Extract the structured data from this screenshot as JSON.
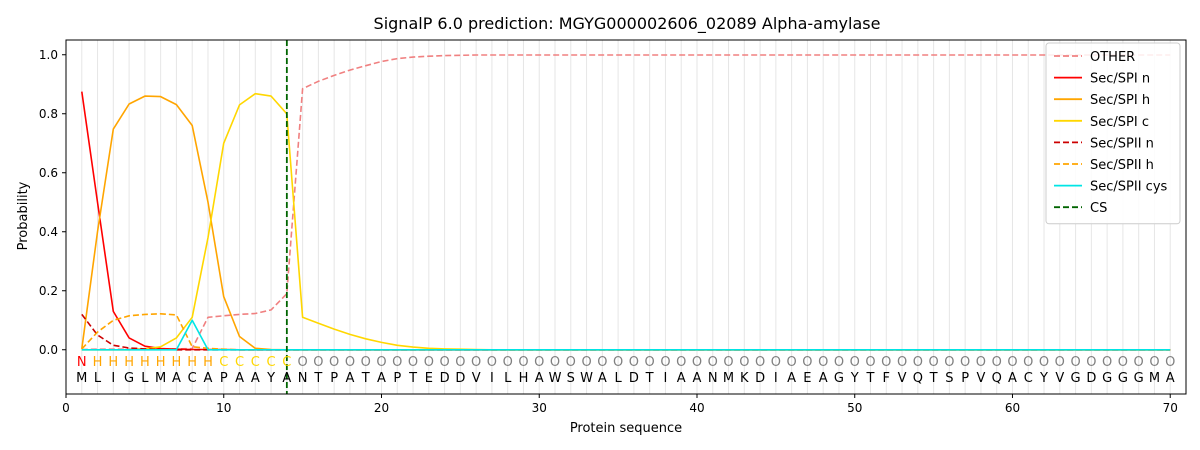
{
  "chart_data": {
    "type": "line",
    "title": "SignalP 6.0 prediction: MGYG000002606_02089 Alpha-amylase",
    "xlabel": "Protein sequence",
    "ylabel": "Probability",
    "xlim": [
      0,
      71
    ],
    "ylim": [
      -0.15,
      1.05
    ],
    "xticks": [
      0,
      10,
      20,
      30,
      40,
      50,
      60,
      70
    ],
    "yticks": [
      0.0,
      0.2,
      0.4,
      0.6,
      0.8,
      1.0
    ],
    "grid": "vertical lines at each residue",
    "legend_position": "top-right",
    "sequence": [
      "M",
      "L",
      "I",
      "G",
      "L",
      "M",
      "A",
      "C",
      "A",
      "P",
      "A",
      "A",
      "Y",
      "A",
      "N",
      "T",
      "P",
      "A",
      "T",
      "A",
      "P",
      "T",
      "E",
      "D",
      "D",
      "V",
      "I",
      "L",
      "H",
      "A",
      "W",
      "S",
      "W",
      "A",
      "L",
      "D",
      "T",
      "I",
      "A",
      "A",
      "N",
      "M",
      "K",
      "D",
      "I",
      "A",
      "E",
      "A",
      "G",
      "Y",
      "T",
      "F",
      "V",
      "Q",
      "T",
      "S",
      "P",
      "V",
      "Q",
      "A",
      "C",
      "Y",
      "V",
      "G",
      "D",
      "G",
      "G",
      "G",
      "M",
      "A"
    ],
    "labels": [
      "N",
      "H",
      "H",
      "H",
      "H",
      "H",
      "H",
      "H",
      "H",
      "C",
      "C",
      "C",
      "C",
      "C",
      "O",
      "O",
      "O",
      "O",
      "O",
      "O",
      "O",
      "O",
      "O",
      "O",
      "O",
      "O",
      "O",
      "O",
      "O",
      "O",
      "O",
      "O",
      "O",
      "O",
      "O",
      "O",
      "O",
      "O",
      "O",
      "O",
      "O",
      "O",
      "O",
      "O",
      "O",
      "O",
      "O",
      "O",
      "O",
      "O",
      "O",
      "O",
      "O",
      "O",
      "O",
      "O",
      "O",
      "O",
      "O",
      "O",
      "O",
      "O",
      "O",
      "O",
      "O",
      "O",
      "O",
      "O",
      "O",
      "O"
    ],
    "label_colors": {
      "N": "#ff0000",
      "H": "#ffa500",
      "C": "#ffd700",
      "O": "#808080"
    },
    "series": [
      {
        "name": "OTHER",
        "color": "#f08080",
        "dash": true,
        "values": [
          0.001,
          0.002,
          0.002,
          0.002,
          0.003,
          0.003,
          0.003,
          0.004,
          0.11,
          0.115,
          0.12,
          0.123,
          0.135,
          0.19,
          0.885,
          0.91,
          0.93,
          0.948,
          0.963,
          0.977,
          0.987,
          0.992,
          0.995,
          0.997,
          0.998,
          0.999,
          0.999,
          0.999,
          0.999,
          0.999,
          0.999,
          0.999,
          0.999,
          0.999,
          0.999,
          0.999,
          0.999,
          0.999,
          0.999,
          0.999,
          0.999,
          0.999,
          0.999,
          0.999,
          0.999,
          0.999,
          0.999,
          0.999,
          0.999,
          0.999,
          0.999,
          0.999,
          0.999,
          0.999,
          0.999,
          0.999,
          0.999,
          0.999,
          0.999,
          0.999,
          0.999,
          0.999,
          0.999,
          0.999,
          0.999,
          0.999,
          0.999,
          0.999,
          0.999,
          0.999
        ]
      },
      {
        "name": "Sec/SPI n",
        "color": "#ff0000",
        "dash": false,
        "values": [
          0.875,
          0.5,
          0.13,
          0.04,
          0.012,
          0.004,
          0.002,
          0.001,
          0.001,
          0.001,
          0.0,
          0.0,
          0.0,
          0.0,
          0.0,
          0.0,
          0.0,
          0.0,
          0.0,
          0.0,
          0.0,
          0.0,
          0.0,
          0.0,
          0.0,
          0.0,
          0.0,
          0.0,
          0.0,
          0.0,
          0.0,
          0.0,
          0.0,
          0.0,
          0.0,
          0.0,
          0.0,
          0.0,
          0.0,
          0.0,
          0.0,
          0.0,
          0.0,
          0.0,
          0.0,
          0.0,
          0.0,
          0.0,
          0.0,
          0.0,
          0.0,
          0.0,
          0.0,
          0.0,
          0.0,
          0.0,
          0.0,
          0.0,
          0.0,
          0.0,
          0.0,
          0.0,
          0.0,
          0.0,
          0.0,
          0.0,
          0.0,
          0.0,
          0.0,
          0.0
        ]
      },
      {
        "name": "Sec/SPI h",
        "color": "#ffa500",
        "dash": false,
        "values": [
          0.003,
          0.4,
          0.748,
          0.833,
          0.86,
          0.858,
          0.831,
          0.76,
          0.5,
          0.18,
          0.045,
          0.005,
          0.001,
          0.0,
          0.0,
          0.0,
          0.0,
          0.0,
          0.0,
          0.0,
          0.0,
          0.0,
          0.0,
          0.0,
          0.0,
          0.0,
          0.0,
          0.0,
          0.0,
          0.0,
          0.0,
          0.0,
          0.0,
          0.0,
          0.0,
          0.0,
          0.0,
          0.0,
          0.0,
          0.0,
          0.0,
          0.0,
          0.0,
          0.0,
          0.0,
          0.0,
          0.0,
          0.0,
          0.0,
          0.0,
          0.0,
          0.0,
          0.0,
          0.0,
          0.0,
          0.0,
          0.0,
          0.0,
          0.0,
          0.0,
          0.0,
          0.0,
          0.0,
          0.0,
          0.0,
          0.0,
          0.0,
          0.0,
          0.0,
          0.0
        ]
      },
      {
        "name": "Sec/SPI c",
        "color": "#ffd700",
        "dash": false,
        "values": [
          0.0,
          0.0,
          0.0,
          0.0,
          0.003,
          0.01,
          0.04,
          0.11,
          0.38,
          0.7,
          0.83,
          0.868,
          0.86,
          0.8,
          0.11,
          0.09,
          0.07,
          0.052,
          0.037,
          0.025,
          0.015,
          0.009,
          0.005,
          0.003,
          0.002,
          0.001,
          0.0,
          0.0,
          0.0,
          0.0,
          0.0,
          0.0,
          0.0,
          0.0,
          0.0,
          0.0,
          0.0,
          0.0,
          0.0,
          0.0,
          0.0,
          0.0,
          0.0,
          0.0,
          0.0,
          0.0,
          0.0,
          0.0,
          0.0,
          0.0,
          0.0,
          0.0,
          0.0,
          0.0,
          0.0,
          0.0,
          0.0,
          0.0,
          0.0,
          0.0,
          0.0,
          0.0,
          0.0,
          0.0,
          0.0,
          0.0,
          0.0,
          0.0,
          0.0,
          0.0
        ]
      },
      {
        "name": "Sec/SPII n",
        "color": "#cc0000",
        "dash": true,
        "values": [
          0.12,
          0.05,
          0.015,
          0.006,
          0.003,
          0.001,
          0.0,
          0.0,
          0.0,
          0.0,
          0.0,
          0.0,
          0.0,
          0.0,
          0.0,
          0.0,
          0.0,
          0.0,
          0.0,
          0.0,
          0.0,
          0.0,
          0.0,
          0.0,
          0.0,
          0.0,
          0.0,
          0.0,
          0.0,
          0.0,
          0.0,
          0.0,
          0.0,
          0.0,
          0.0,
          0.0,
          0.0,
          0.0,
          0.0,
          0.0,
          0.0,
          0.0,
          0.0,
          0.0,
          0.0,
          0.0,
          0.0,
          0.0,
          0.0,
          0.0,
          0.0,
          0.0,
          0.0,
          0.0,
          0.0,
          0.0,
          0.0,
          0.0,
          0.0,
          0.0,
          0.0,
          0.0,
          0.0,
          0.0,
          0.0,
          0.0,
          0.0,
          0.0,
          0.0,
          0.0
        ]
      },
      {
        "name": "Sec/SPII h",
        "color": "#ffa500",
        "dash": true,
        "values": [
          0.003,
          0.06,
          0.1,
          0.115,
          0.12,
          0.122,
          0.118,
          0.01,
          0.005,
          0.002,
          0.0,
          0.0,
          0.0,
          0.0,
          0.0,
          0.0,
          0.0,
          0.0,
          0.0,
          0.0,
          0.0,
          0.0,
          0.0,
          0.0,
          0.0,
          0.0,
          0.0,
          0.0,
          0.0,
          0.0,
          0.0,
          0.0,
          0.0,
          0.0,
          0.0,
          0.0,
          0.0,
          0.0,
          0.0,
          0.0,
          0.0,
          0.0,
          0.0,
          0.0,
          0.0,
          0.0,
          0.0,
          0.0,
          0.0,
          0.0,
          0.0,
          0.0,
          0.0,
          0.0,
          0.0,
          0.0,
          0.0,
          0.0,
          0.0,
          0.0,
          0.0,
          0.0,
          0.0,
          0.0,
          0.0,
          0.0,
          0.0,
          0.0,
          0.0,
          0.0
        ]
      },
      {
        "name": "Sec/SPII cys",
        "color": "#00e5e5",
        "dash": false,
        "values": [
          0.0,
          0.0,
          0.0,
          0.0,
          0.0,
          0.0,
          0.0,
          0.1,
          0.0,
          0.0,
          0.0,
          0.0,
          0.0,
          0.0,
          0.0,
          0.0,
          0.0,
          0.0,
          0.0,
          0.0,
          0.0,
          0.0,
          0.0,
          0.0,
          0.0,
          0.0,
          0.0,
          0.0,
          0.0,
          0.0,
          0.0,
          0.0,
          0.0,
          0.0,
          0.0,
          0.0,
          0.0,
          0.0,
          0.0,
          0.0,
          0.0,
          0.0,
          0.0,
          0.0,
          0.0,
          0.0,
          0.0,
          0.0,
          0.0,
          0.0,
          0.0,
          0.0,
          0.0,
          0.0,
          0.0,
          0.0,
          0.0,
          0.0,
          0.0,
          0.0,
          0.0,
          0.0,
          0.0,
          0.0,
          0.0,
          0.0,
          0.0,
          0.0,
          0.0,
          0.0
        ]
      }
    ],
    "cs": {
      "name": "CS",
      "x": 14,
      "color": "#006400"
    }
  }
}
